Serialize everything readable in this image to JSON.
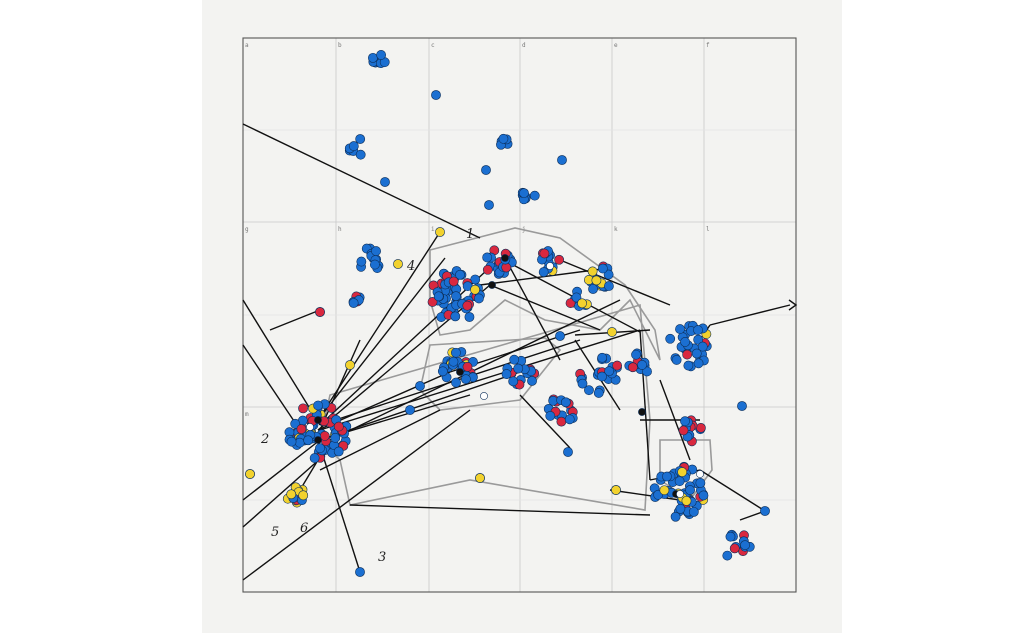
{
  "grid": {
    "column_letters": [
      "a",
      "b",
      "c",
      "d",
      "e",
      "f"
    ],
    "row2_letters": [
      "g",
      "h",
      "i",
      "j",
      "k",
      "l"
    ],
    "row3_letters": [
      "m",
      "",
      "",
      "",
      "",
      ""
    ]
  },
  "cluster_labels": [
    "1",
    "2",
    "3",
    "4",
    "5",
    "6"
  ],
  "colors": {
    "blue": "#1b6fd1",
    "red": "#d9283f",
    "yellow": "#f2d22e",
    "black": "#111111",
    "line": "#111111",
    "hull": "#9a9a9a",
    "grid": "#c9c9c9",
    "frame": "#555555"
  }
}
